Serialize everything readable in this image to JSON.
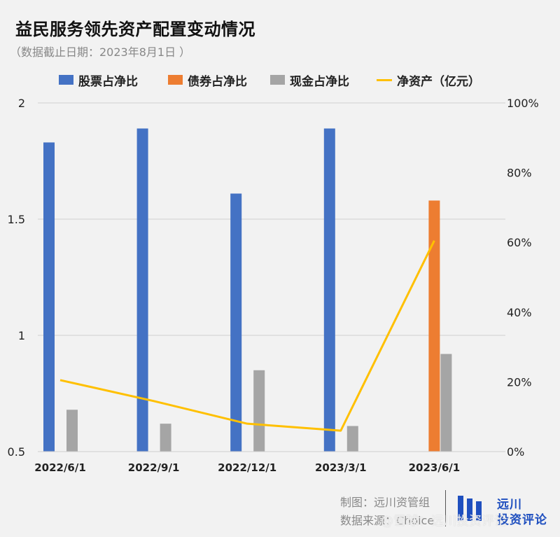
{
  "title": "益民服务领先资产配置变动情况",
  "subtitle": "（数据截止日期：2023年8月1日 ）",
  "legend": [
    {
      "label": "股票占净比",
      "color": "#4472c4",
      "kind": "bar"
    },
    {
      "label": "债券占净比",
      "color": "#ed7d31",
      "kind": "bar"
    },
    {
      "label": "现金占净比",
      "color": "#a5a5a5",
      "kind": "bar"
    },
    {
      "label": "净资产（亿元）",
      "color": "#ffc000",
      "kind": "line"
    }
  ],
  "chart_data": {
    "type": "bar",
    "categories": [
      "2022/6/1",
      "2022/9/1",
      "2022/12/1",
      "2023/3/1",
      "2023/6/1"
    ],
    "series": [
      {
        "name": "股票占净比",
        "axis": "left",
        "color": "#4472c4",
        "values": [
          1.83,
          1.89,
          1.61,
          1.89,
          null
        ]
      },
      {
        "name": "债券占净比",
        "axis": "left",
        "color": "#ed7d31",
        "values": [
          null,
          null,
          null,
          null,
          1.58
        ]
      },
      {
        "name": "现金占净比",
        "axis": "left",
        "color": "#a5a5a5",
        "values": [
          0.68,
          0.62,
          0.85,
          0.61,
          0.92
        ]
      },
      {
        "name": "净资产（亿元）",
        "type": "line",
        "axis": "right",
        "color": "#ffc000",
        "values": [
          20.5,
          14.5,
          8,
          6,
          60.5
        ]
      }
    ],
    "y_left": {
      "lim": [
        0.5,
        2
      ],
      "ticks": [
        "0.5",
        "1",
        "1.5",
        "2"
      ],
      "tick_values": [
        0.5,
        1,
        1.5,
        2
      ]
    },
    "y_right": {
      "lim": [
        0,
        100
      ],
      "ticks": [
        "0%",
        "20%",
        "40%",
        "60%",
        "80%",
        "100%"
      ],
      "tick_values": [
        0,
        20,
        40,
        60,
        80,
        100
      ]
    },
    "grid": true,
    "legend_position": "top"
  },
  "footer": {
    "credit_line1": "制图：远川资管组",
    "credit_line2": "数据来源：Choice",
    "brand_line1": "远川",
    "brand_line2": "投资评论",
    "watermark": "@雪球：远川投资评论"
  }
}
